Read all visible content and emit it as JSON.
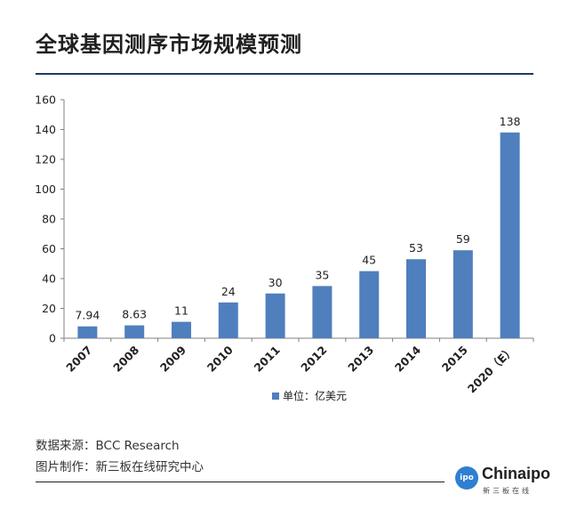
{
  "title": "全球基因测序市场规模预测",
  "footer": {
    "source": "数据来源：BCC Research",
    "maker": "图片制作：新三板在线研究中心"
  },
  "logo": {
    "badge": "ipo",
    "name": "Chinaipo",
    "subtitle": "新三板在线"
  },
  "colors": {
    "bar": "#4f7fbd",
    "rule": "#1f3864"
  },
  "chart_data": {
    "type": "bar",
    "categories": [
      "2007",
      "2008",
      "2009",
      "2010",
      "2011",
      "2012",
      "2013",
      "2014",
      "2015",
      "2020（E）"
    ],
    "series": [
      {
        "name": "单位：亿美元",
        "values": [
          7.94,
          8.63,
          11,
          24,
          30,
          35,
          45,
          53,
          59,
          138
        ]
      }
    ],
    "data_labels": [
      "7.94",
      "8.63",
      "11",
      "24",
      "30",
      "35",
      "45",
      "53",
      "59",
      "138"
    ],
    "ylim": [
      0,
      160
    ],
    "yticks": [
      0,
      20,
      40,
      60,
      80,
      100,
      120,
      140,
      160
    ],
    "grid": false,
    "legend": "bottom",
    "xlabel": "",
    "ylabel": ""
  }
}
